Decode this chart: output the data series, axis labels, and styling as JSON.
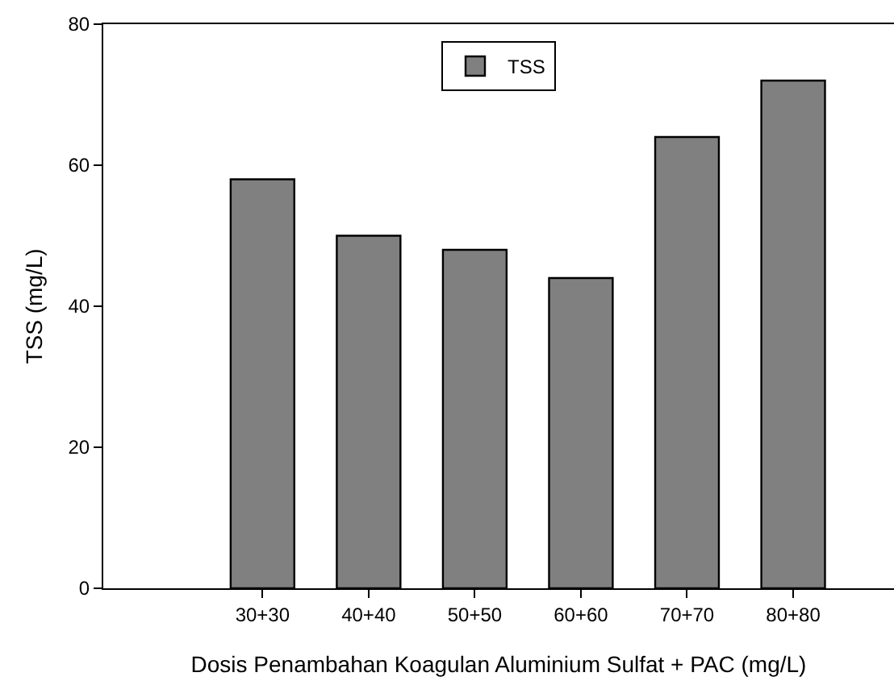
{
  "chart_data": {
    "type": "bar",
    "xlabel": "Dosis Penambahan Koagulan Aluminium Sulfat + PAC (mg/L)",
    "ylabel": "TSS (mg/L)",
    "categories": [
      "30+30",
      "40+40",
      "50+50",
      "60+60",
      "70+70",
      "80+80"
    ],
    "series": [
      {
        "name": "TSS",
        "color": "#808080",
        "values": [
          58,
          50,
          48,
          44,
          64,
          72
        ]
      }
    ],
    "ylim": [
      0,
      80
    ],
    "yticks": [
      0,
      20,
      40,
      60,
      80
    ],
    "grid": false,
    "legend": "top"
  }
}
